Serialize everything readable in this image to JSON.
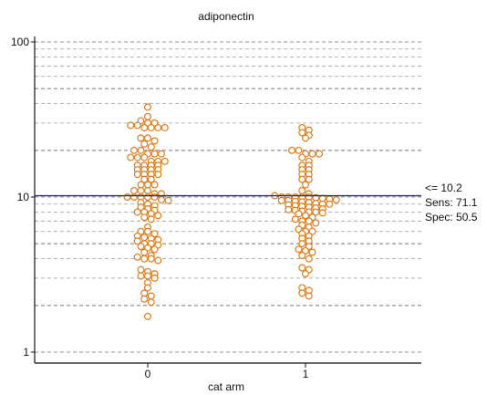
{
  "chart_data": {
    "type": "scatter",
    "subtype": "dot-plot",
    "title": "adiponectin",
    "xlabel": "cat arm",
    "ylabel": "",
    "yscale": "log",
    "ylim": [
      1,
      100
    ],
    "y_ticks": [
      "1",
      "10",
      "100"
    ],
    "categories": [
      "0",
      "1"
    ],
    "grid": true,
    "colors": {
      "points": "#e07b1a",
      "cutoff": "#2b2b6e",
      "grid": "#999999"
    },
    "cutoff": {
      "value": 10.2,
      "label": "<= 10.2",
      "sens": "Sens: 71.1",
      "spec": "Spec: 50.5"
    },
    "series": [
      {
        "category": "0",
        "values": [
          38,
          33,
          31,
          30,
          30,
          29,
          29,
          28,
          28,
          28,
          28,
          24,
          24,
          23,
          22,
          21,
          20,
          20,
          19,
          19,
          19,
          18,
          18,
          18,
          17,
          17,
          17,
          16,
          16,
          16,
          16,
          15,
          15,
          15,
          15,
          14,
          14,
          14,
          14,
          13,
          13,
          12,
          12,
          12,
          11,
          11,
          11,
          10.5,
          10.5,
          10,
          10,
          10,
          10,
          10,
          9.6,
          9.5,
          9.2,
          9,
          8.8,
          8.6,
          8.4,
          8.2,
          8,
          8,
          7.8,
          7.6,
          7.4,
          7.2,
          6.4,
          6,
          6,
          5.8,
          5.6,
          5.5,
          5.4,
          5.3,
          5.2,
          5,
          5,
          4.9,
          4.8,
          4.7,
          4.6,
          4.4,
          4.2,
          4.1,
          4,
          4,
          3.9,
          3.4,
          3.3,
          3.2,
          3.1,
          3.1,
          3,
          2.8,
          2.6,
          2.4,
          2.3,
          2.2,
          2.1,
          1.7
        ]
      },
      {
        "category": "1",
        "values": [
          28,
          27,
          26,
          25,
          24,
          20,
          20,
          19,
          19,
          19,
          18,
          17,
          16,
          16,
          15,
          15,
          14,
          14,
          13,
          13,
          12,
          11,
          10.5,
          10.2,
          10,
          10,
          10,
          10,
          10,
          9.9,
          9.8,
          9.7,
          9.6,
          9.5,
          9.5,
          9.4,
          9.3,
          9.2,
          9.1,
          9,
          9,
          8.9,
          8.8,
          8.7,
          8.6,
          8.5,
          8.4,
          8.3,
          8.2,
          8.1,
          8,
          8,
          7.9,
          7.8,
          7.6,
          7.4,
          7.2,
          7,
          7,
          6.8,
          6.6,
          6.4,
          6.2,
          6,
          6,
          5.8,
          5.6,
          5.4,
          5.2,
          5,
          4.8,
          4.6,
          4.5,
          4.4,
          4.2,
          4,
          3.5,
          3.4,
          3.2,
          2.6,
          2.5,
          2.4,
          2.3
        ]
      }
    ]
  }
}
